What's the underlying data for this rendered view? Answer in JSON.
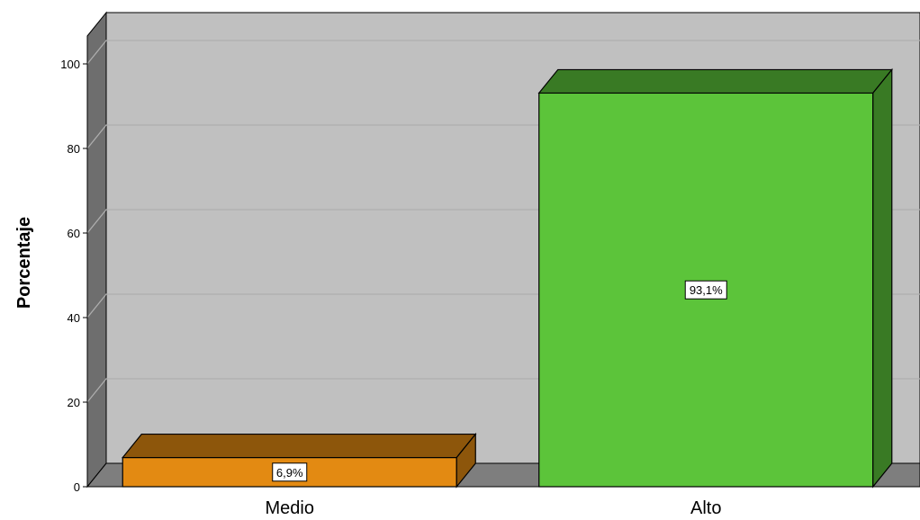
{
  "chart_data": {
    "type": "bar",
    "categories": [
      "Medio",
      "Alto"
    ],
    "values": [
      6.9,
      93.1
    ],
    "data_labels": [
      "6,9%",
      "93,1%"
    ],
    "colors": [
      "#E38A12",
      "#5CC43A"
    ],
    "ylabel": "Porcentaje",
    "xlabel": "",
    "ylim": [
      0,
      100
    ],
    "yticks": [
      "0",
      "20",
      "40",
      "60",
      "80",
      "100"
    ],
    "grid": true,
    "style": "3d"
  }
}
